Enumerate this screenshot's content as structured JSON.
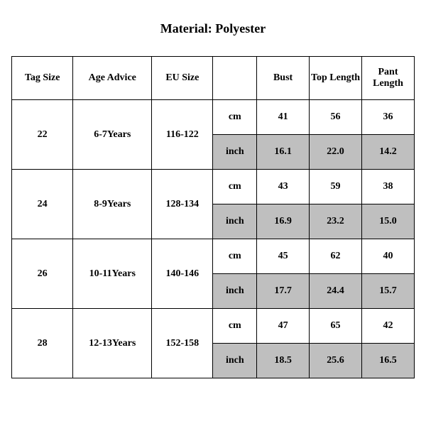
{
  "title": "Material: Polyester",
  "columns": {
    "tag_size": "Tag Size",
    "age_advice": "Age Advice",
    "eu_size": "EU Size",
    "unit": "",
    "bust": "Bust",
    "top_length": "Top Length",
    "pant_length": "Pant Length"
  },
  "units": {
    "cm": "cm",
    "inch": "inch"
  },
  "rows": [
    {
      "tag": "22",
      "age": "6-7Years",
      "eu": "116-122",
      "cm": {
        "bust": "41",
        "top": "56",
        "pant": "36"
      },
      "inch": {
        "bust": "16.1",
        "top": "22.0",
        "pant": "14.2"
      }
    },
    {
      "tag": "24",
      "age": "8-9Years",
      "eu": "128-134",
      "cm": {
        "bust": "43",
        "top": "59",
        "pant": "38"
      },
      "inch": {
        "bust": "16.9",
        "top": "23.2",
        "pant": "15.0"
      }
    },
    {
      "tag": "26",
      "age": "10-11Years",
      "eu": "140-146",
      "cm": {
        "bust": "45",
        "top": "62",
        "pant": "40"
      },
      "inch": {
        "bust": "17.7",
        "top": "24.4",
        "pant": "15.7"
      }
    },
    {
      "tag": "28",
      "age": "12-13Years",
      "eu": "152-158",
      "cm": {
        "bust": "47",
        "top": "65",
        "pant": "42"
      },
      "inch": {
        "bust": "18.5",
        "top": "25.6",
        "pant": "16.5"
      }
    }
  ],
  "style": {
    "background_color": "#ffffff",
    "shaded_color": "#bfbfbf",
    "border_color": "#000000",
    "title_fontsize": 18,
    "cell_fontsize": 14,
    "font_family": "Times New Roman"
  }
}
